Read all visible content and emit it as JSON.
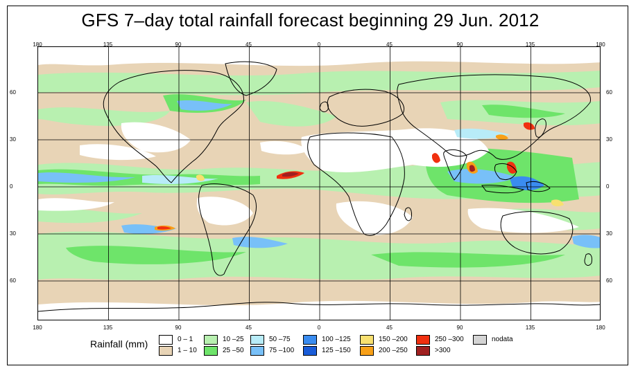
{
  "title": "GFS 7–day total rainfall forecast beginning 29 Jun. 2012",
  "axes": {
    "lon_ticks": [
      "180",
      "135",
      "90",
      "45",
      "0",
      "45",
      "90",
      "135",
      "180"
    ],
    "lat_ticks": [
      "60",
      "30",
      "0",
      "30",
      "60"
    ]
  },
  "legend": {
    "title": "Rainfall (mm)",
    "items": [
      {
        "label": "0 – 1",
        "color": "#ffffff"
      },
      {
        "label": "1 – 10",
        "color": "#e8d4b6"
      },
      {
        "label": "10 –25",
        "color": "#b8f0b0"
      },
      {
        "label": "25 –50",
        "color": "#6ee46a"
      },
      {
        "label": "50 –75",
        "color": "#b8ecf8"
      },
      {
        "label": "75 –100",
        "color": "#78c0f8"
      },
      {
        "label": "100 –125",
        "color": "#3a8cf0"
      },
      {
        "label": "125 –150",
        "color": "#1a5cd8"
      },
      {
        "label": "150 –200",
        "color": "#f8e070"
      },
      {
        "label": "200 –250",
        "color": "#f8a018"
      },
      {
        "label": "250 –300",
        "color": "#f03010"
      },
      {
        "label": ">300",
        "color": "#a02020"
      },
      {
        "label": "nodata",
        "color": "#d4d4d4"
      }
    ]
  }
}
